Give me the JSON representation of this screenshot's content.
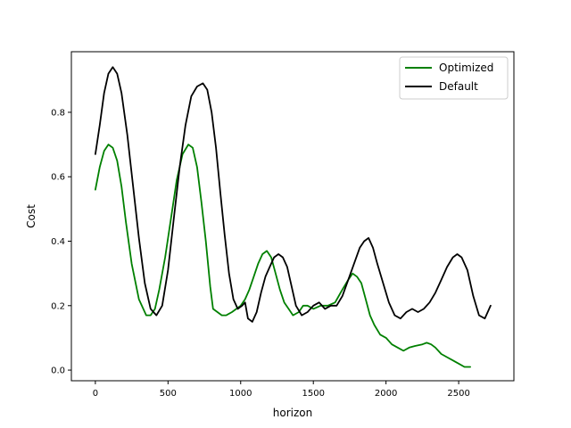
{
  "chart_data": {
    "type": "line",
    "title": "",
    "xlabel": "horizon",
    "ylabel": "Cost",
    "xlim": [
      -165,
      2880
    ],
    "ylim": [
      -0.033,
      0.988
    ],
    "xticks": [
      0,
      500,
      1000,
      1500,
      2000,
      2500
    ],
    "xtick_labels": [
      "0",
      "500",
      "1000",
      "1500",
      "2000",
      "2500"
    ],
    "yticks": [
      0.0,
      0.2,
      0.4,
      0.6,
      0.8
    ],
    "ytick_labels": [
      "0.0",
      "0.2",
      "0.4",
      "0.6",
      "0.8"
    ],
    "grid": false,
    "legend_position": "upper right",
    "series": [
      {
        "name": "Optimized",
        "color": "#008000",
        "x": [
          0,
          30,
          60,
          90,
          120,
          150,
          180,
          210,
          250,
          300,
          350,
          380,
          410,
          440,
          480,
          520,
          560,
          600,
          640,
          670,
          700,
          730,
          760,
          790,
          810,
          840,
          870,
          900,
          940,
          970,
          1000,
          1030,
          1060,
          1090,
          1120,
          1150,
          1180,
          1210,
          1240,
          1270,
          1300,
          1330,
          1360,
          1400,
          1430,
          1460,
          1500,
          1550,
          1600,
          1650,
          1700,
          1740,
          1770,
          1800,
          1830,
          1860,
          1890,
          1920,
          1960,
          2000,
          2040,
          2080,
          2120,
          2160,
          2200,
          2250,
          2280,
          2310,
          2340,
          2380,
          2420,
          2460,
          2500,
          2540,
          2580
        ],
        "y": [
          0.56,
          0.63,
          0.68,
          0.7,
          0.69,
          0.65,
          0.57,
          0.46,
          0.33,
          0.22,
          0.17,
          0.17,
          0.19,
          0.25,
          0.35,
          0.47,
          0.59,
          0.67,
          0.7,
          0.69,
          0.63,
          0.52,
          0.4,
          0.26,
          0.19,
          0.18,
          0.17,
          0.17,
          0.18,
          0.19,
          0.2,
          0.22,
          0.25,
          0.29,
          0.33,
          0.36,
          0.37,
          0.35,
          0.3,
          0.25,
          0.21,
          0.19,
          0.17,
          0.18,
          0.2,
          0.2,
          0.19,
          0.2,
          0.2,
          0.21,
          0.25,
          0.28,
          0.3,
          0.29,
          0.27,
          0.22,
          0.17,
          0.14,
          0.11,
          0.1,
          0.08,
          0.07,
          0.06,
          0.07,
          0.075,
          0.08,
          0.085,
          0.08,
          0.07,
          0.05,
          0.04,
          0.03,
          0.02,
          0.01,
          0.01
        ]
      },
      {
        "name": "Default",
        "color": "#000000",
        "x": [
          0,
          30,
          60,
          90,
          120,
          150,
          180,
          220,
          260,
          300,
          340,
          380,
          420,
          460,
          500,
          540,
          580,
          620,
          660,
          700,
          740,
          770,
          800,
          830,
          860,
          890,
          920,
          950,
          980,
          1010,
          1030,
          1050,
          1080,
          1110,
          1140,
          1170,
          1200,
          1230,
          1260,
          1290,
          1320,
          1350,
          1380,
          1420,
          1460,
          1500,
          1540,
          1580,
          1620,
          1660,
          1700,
          1740,
          1780,
          1820,
          1850,
          1880,
          1910,
          1940,
          1980,
          2020,
          2060,
          2100,
          2140,
          2180,
          2220,
          2260,
          2300,
          2340,
          2380,
          2420,
          2460,
          2490,
          2520,
          2560,
          2600,
          2640,
          2680,
          2720
        ],
        "y": [
          0.67,
          0.76,
          0.86,
          0.92,
          0.94,
          0.92,
          0.86,
          0.73,
          0.57,
          0.41,
          0.27,
          0.19,
          0.17,
          0.2,
          0.31,
          0.47,
          0.63,
          0.76,
          0.85,
          0.88,
          0.89,
          0.87,
          0.8,
          0.69,
          0.55,
          0.42,
          0.3,
          0.22,
          0.19,
          0.2,
          0.21,
          0.16,
          0.15,
          0.18,
          0.24,
          0.29,
          0.32,
          0.35,
          0.36,
          0.35,
          0.32,
          0.26,
          0.2,
          0.17,
          0.18,
          0.2,
          0.21,
          0.19,
          0.2,
          0.2,
          0.23,
          0.28,
          0.33,
          0.38,
          0.4,
          0.41,
          0.38,
          0.33,
          0.27,
          0.21,
          0.17,
          0.16,
          0.18,
          0.19,
          0.18,
          0.19,
          0.21,
          0.24,
          0.28,
          0.32,
          0.35,
          0.36,
          0.35,
          0.31,
          0.23,
          0.17,
          0.16,
          0.2
        ]
      }
    ]
  }
}
